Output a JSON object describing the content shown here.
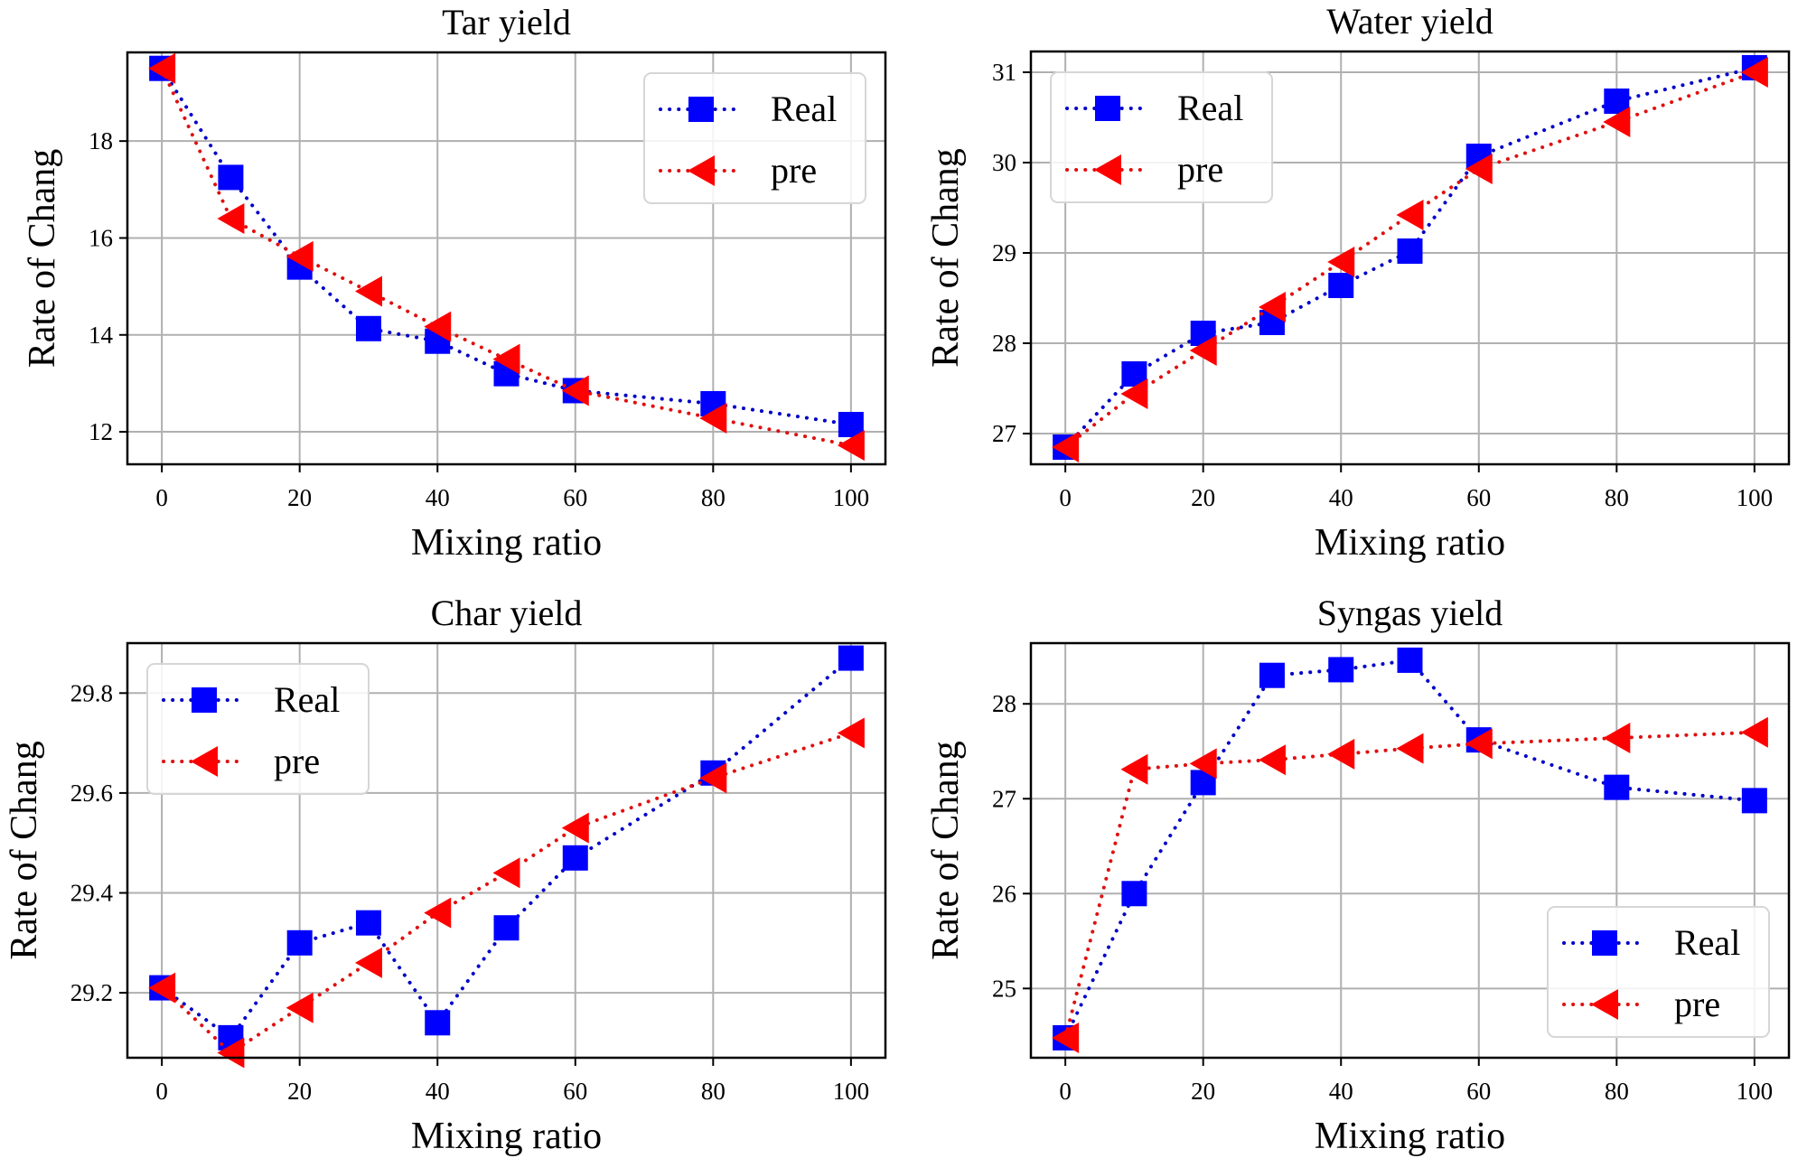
{
  "figure": {
    "series_styles": {
      "Real": {
        "color": "#0000ff",
        "line_color": "#0000c8",
        "marker": "square",
        "line_style": "dotted"
      },
      "pre": {
        "color": "#ff0000",
        "line_color": "#e01010",
        "marker": "triangle-left",
        "line_style": "dotted"
      }
    }
  },
  "chart_data": [
    {
      "type": "line",
      "title": "Tar yield",
      "xlabel": "Mixing ratio",
      "ylabel": "Rate of Chang",
      "x": [
        0,
        10,
        20,
        30,
        40,
        50,
        60,
        80,
        100
      ],
      "xlim": [
        -5,
        105
      ],
      "ylim": [
        11.33,
        19.83
      ],
      "xticks": [
        0,
        20,
        40,
        60,
        80,
        100
      ],
      "xtick_labels": [
        "0",
        "20",
        "40",
        "60",
        "80",
        "100"
      ],
      "yticks": [
        12,
        14,
        16,
        18
      ],
      "ytick_labels": [
        "12",
        "14",
        "16",
        "18"
      ],
      "grid": true,
      "legend_position": "upper-right",
      "series": [
        {
          "name": "Real",
          "values": [
            19.5,
            17.25,
            15.4,
            14.13,
            13.87,
            13.2,
            12.85,
            12.58,
            12.15
          ]
        },
        {
          "name": "pre",
          "values": [
            19.5,
            16.4,
            15.62,
            14.9,
            14.17,
            13.5,
            12.85,
            12.28,
            11.72
          ]
        }
      ]
    },
    {
      "type": "line",
      "title": "Water yield",
      "xlabel": "Mixing ratio",
      "ylabel": "Rate of Chang",
      "x": [
        0,
        10,
        20,
        30,
        40,
        50,
        60,
        80,
        100
      ],
      "xlim": [
        -5,
        105
      ],
      "ylim": [
        26.66,
        31.23
      ],
      "xticks": [
        0,
        20,
        40,
        60,
        80,
        100
      ],
      "xtick_labels": [
        "0",
        "20",
        "40",
        "60",
        "80",
        "100"
      ],
      "yticks": [
        27,
        28,
        29,
        30,
        31
      ],
      "ytick_labels": [
        "27",
        "28",
        "29",
        "30",
        "31"
      ],
      "grid": true,
      "legend_position": "upper-left",
      "series": [
        {
          "name": "Real",
          "values": [
            26.85,
            27.66,
            28.11,
            28.23,
            28.64,
            29.02,
            30.07,
            30.68,
            31.05
          ]
        },
        {
          "name": "pre",
          "values": [
            26.85,
            27.44,
            27.92,
            28.4,
            28.9,
            29.42,
            29.93,
            30.45,
            31.0
          ]
        }
      ]
    },
    {
      "type": "line",
      "title": "Char yield",
      "xlabel": "Mixing ratio",
      "ylabel": "Rate of Chang",
      "x": [
        0,
        10,
        20,
        30,
        40,
        50,
        60,
        80,
        100
      ],
      "xlim": [
        -5,
        105
      ],
      "ylim": [
        29.07,
        29.9
      ],
      "xticks": [
        0,
        20,
        40,
        60,
        80,
        100
      ],
      "xtick_labels": [
        "0",
        "20",
        "40",
        "60",
        "80",
        "100"
      ],
      "yticks": [
        29.2,
        29.4,
        29.6,
        29.8
      ],
      "ytick_labels": [
        "29.2",
        "29.4",
        "29.6",
        "29.8"
      ],
      "grid": true,
      "legend_position": "upper-left",
      "series": [
        {
          "name": "Real",
          "values": [
            29.21,
            29.11,
            29.3,
            29.34,
            29.14,
            29.33,
            29.47,
            29.64,
            29.87
          ]
        },
        {
          "name": "pre",
          "values": [
            29.21,
            29.08,
            29.17,
            29.26,
            29.36,
            29.44,
            29.53,
            29.63,
            29.72
          ]
        }
      ]
    },
    {
      "type": "line",
      "title": "Syngas yield",
      "xlabel": "Mixing ratio",
      "ylabel": "Rate of Chang",
      "x": [
        0,
        10,
        20,
        30,
        40,
        50,
        60,
        80,
        100
      ],
      "xlim": [
        -5,
        105
      ],
      "ylim": [
        24.27,
        28.64
      ],
      "xticks": [
        0,
        20,
        40,
        60,
        80,
        100
      ],
      "xtick_labels": [
        "0",
        "20",
        "40",
        "60",
        "80",
        "100"
      ],
      "yticks": [
        25,
        26,
        27,
        28
      ],
      "ytick_labels": [
        "25",
        "26",
        "27",
        "28"
      ],
      "grid": true,
      "legend_position": "lower-right",
      "series": [
        {
          "name": "Real",
          "values": [
            24.48,
            26.0,
            27.17,
            28.3,
            28.36,
            28.46,
            27.62,
            27.12,
            26.98
          ]
        },
        {
          "name": "pre",
          "values": [
            24.48,
            27.31,
            27.37,
            27.41,
            27.47,
            27.53,
            27.58,
            27.64,
            27.7
          ]
        }
      ]
    }
  ]
}
